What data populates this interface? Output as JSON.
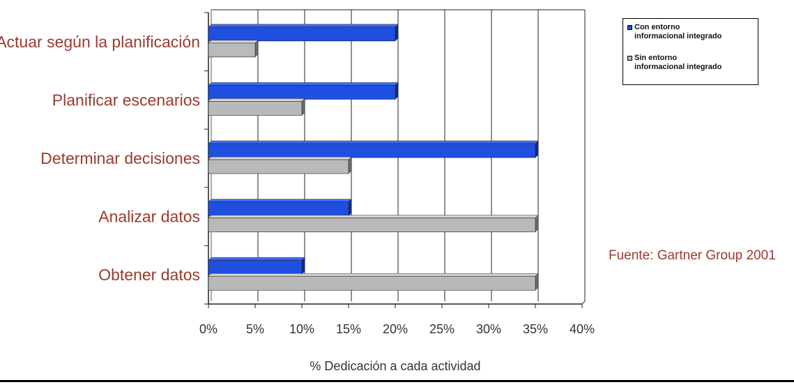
{
  "chart_data": {
    "type": "bar",
    "orientation": "horizontal",
    "categories": [
      "Actuar según la planificación",
      "Planificar escenarios",
      "Determinar decisiones",
      "Analizar datos",
      "Obtener datos"
    ],
    "series": [
      {
        "name": "Con entorno informacional integrado",
        "values": [
          20,
          20,
          35,
          15,
          10
        ],
        "color": "#1f4fe0"
      },
      {
        "name": "Sin entorno informacional integrado",
        "values": [
          5,
          10,
          15,
          35,
          35
        ],
        "color": "#b9b9b9"
      }
    ],
    "xlabel": "% Dedicación a cada actividad",
    "ylabel": "",
    "xlim": [
      0,
      40
    ],
    "xticks": [
      "0%",
      "5%",
      "10%",
      "15%",
      "20%",
      "25%",
      "30%",
      "35%",
      "40%"
    ],
    "grid": "vertical",
    "legend_placement": "top-right",
    "annotation": "Fuente: Gartner Group 2001"
  },
  "legend": {
    "entry1": "Con entorno\ninformacional integrado",
    "entry2": "Sin entorno\ninformacional integrado"
  },
  "colors": {
    "category_label": "#9b3a2e",
    "axis_text": "#333333"
  }
}
